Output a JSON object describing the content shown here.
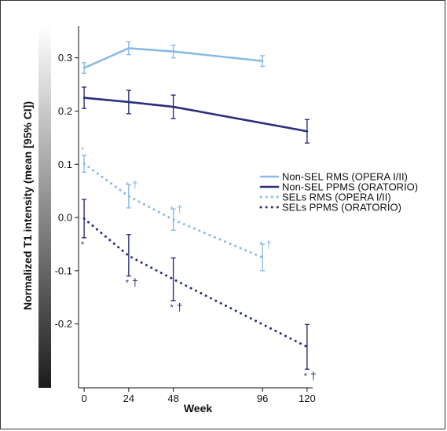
{
  "chart_data": {
    "type": "line",
    "title": "",
    "xlabel": "Week",
    "ylabel": "Normalized T1 intensity (mean [95% CI])",
    "x_ticks": [
      0,
      24,
      48,
      96,
      120
    ],
    "y_ticks": [
      0.3,
      0.2,
      0.1,
      0.0,
      -0.1,
      -0.2
    ],
    "y_tick_labels": [
      "0.3",
      "0.2",
      "0.1",
      "0.0",
      "-0.1",
      "-0.2"
    ],
    "x_tick_labels": [
      "0",
      "24",
      "48",
      "96",
      "120"
    ],
    "ylim": [
      -0.32,
      0.36
    ],
    "xlim": [
      -3,
      123
    ],
    "grid": false,
    "legend_position": "right",
    "colorbar": "grayscale gradient along y-axis, white at top to black at bottom",
    "series": [
      {
        "name": "Non-SEL RMS (OPERA I/II)",
        "style": "solid",
        "color": "#8ab9e6",
        "x": [
          0,
          24,
          48,
          96
        ],
        "y": [
          0.281,
          0.318,
          0.312,
          0.294
        ],
        "lower": [
          0.271,
          0.306,
          0.3,
          0.284
        ],
        "upper": [
          0.291,
          0.33,
          0.324,
          0.304
        ],
        "markers": [
          "",
          "",
          "",
          ""
        ]
      },
      {
        "name": "Non-SEL PPMS (ORATORIO)",
        "style": "solid",
        "color": "#2a2f7a",
        "x": [
          0,
          24,
          48,
          120
        ],
        "y": [
          0.225,
          0.217,
          0.208,
          0.162
        ],
        "lower": [
          0.205,
          0.195,
          0.186,
          0.14
        ],
        "upper": [
          0.245,
          0.239,
          0.23,
          0.184
        ],
        "markers": [
          "",
          "",
          "",
          ""
        ]
      },
      {
        "name": "SELs RMS (OPERA I/II)",
        "style": "dotted",
        "color": "#8ab9e6",
        "x": [
          0,
          24,
          48,
          96
        ],
        "y": [
          0.101,
          0.04,
          -0.004,
          -0.075
        ],
        "lower": [
          0.085,
          0.018,
          -0.024,
          -0.1
        ],
        "upper": [
          0.117,
          0.062,
          0.016,
          -0.05
        ],
        "markers": [
          "*",
          "*†",
          "*†",
          "*†"
        ]
      },
      {
        "name": "SELs PPMS (ORATORIO)",
        "style": "dotted",
        "color": "#2a2f7a",
        "x": [
          0,
          24,
          48,
          120
        ],
        "y": [
          -0.002,
          -0.072,
          -0.116,
          -0.243
        ],
        "lower": [
          -0.038,
          -0.11,
          -0.156,
          -0.285
        ],
        "upper": [
          0.034,
          -0.032,
          -0.076,
          -0.201
        ],
        "markers": [
          "*",
          "*†",
          "*†",
          "*†"
        ]
      }
    ]
  }
}
